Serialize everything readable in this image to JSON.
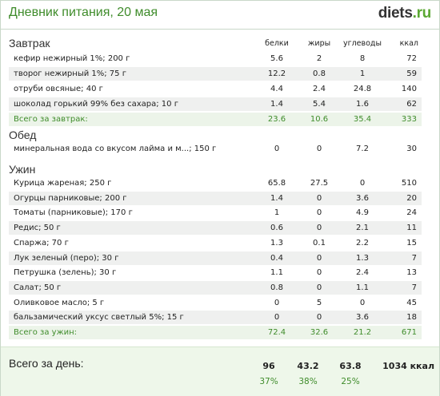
{
  "header": {
    "title": "Дневник питания, 20 мая",
    "logo_main": "diets",
    "logo_suffix": ".ru"
  },
  "columns": {
    "proteins": "белки",
    "fats": "жиры",
    "carbs": "углеводы",
    "kcal": "ккал"
  },
  "breakfast": {
    "title": "Завтрак",
    "items": [
      {
        "name": "кефир нежирный 1%; 200 г",
        "p": "5.6",
        "f": "2",
        "c": "8",
        "kcal": "72"
      },
      {
        "name": "творог нежирный 1%; 75 г",
        "p": "12.2",
        "f": "0.8",
        "c": "1",
        "kcal": "59"
      },
      {
        "name": "отруби овсяные; 40 г",
        "p": "4.4",
        "f": "2.4",
        "c": "24.8",
        "kcal": "140"
      },
      {
        "name": "шоколад горький 99% без сахара; 10 г",
        "p": "1.4",
        "f": "5.4",
        "c": "1.6",
        "kcal": "62"
      }
    ],
    "total": {
      "label": "Всего за завтрак:",
      "p": "23.6",
      "f": "10.6",
      "c": "35.4",
      "kcal": "333"
    }
  },
  "lunch": {
    "title": "Обед",
    "items": [
      {
        "name": "минеральная вода со вкусом лайма и м...; 150 г",
        "p": "0",
        "f": "0",
        "c": "7.2",
        "kcal": "30"
      }
    ]
  },
  "dinner": {
    "title": "Ужин",
    "items": [
      {
        "name": "Курица жареная; 250 г",
        "p": "65.8",
        "f": "27.5",
        "c": "0",
        "kcal": "510"
      },
      {
        "name": "Огурцы парниковые; 200 г",
        "p": "1.4",
        "f": "0",
        "c": "3.6",
        "kcal": "20"
      },
      {
        "name": "Томаты (парниковые); 170 г",
        "p": "1",
        "f": "0",
        "c": "4.9",
        "kcal": "24"
      },
      {
        "name": "Редис; 50 г",
        "p": "0.6",
        "f": "0",
        "c": "2.1",
        "kcal": "11"
      },
      {
        "name": "Спаржа; 70 г",
        "p": "1.3",
        "f": "0.1",
        "c": "2.2",
        "kcal": "15"
      },
      {
        "name": "Лук зеленый (перо); 30 г",
        "p": "0.4",
        "f": "0",
        "c": "1.3",
        "kcal": "7"
      },
      {
        "name": "Петрушка (зелень); 30 г",
        "p": "1.1",
        "f": "0",
        "c": "2.4",
        "kcal": "13"
      },
      {
        "name": "Салат; 50 г",
        "p": "0.8",
        "f": "0",
        "c": "1.1",
        "kcal": "7"
      },
      {
        "name": "Оливковое масло; 5 г",
        "p": "0",
        "f": "5",
        "c": "0",
        "kcal": "45"
      },
      {
        "name": "бальзамический уксус светлый 5%; 15 г",
        "p": "0",
        "f": "0",
        "c": "3.6",
        "kcal": "18"
      }
    ],
    "total": {
      "label": "Всего за ужин:",
      "p": "72.4",
      "f": "32.6",
      "c": "21.2",
      "kcal": "671"
    }
  },
  "day_total": {
    "label": "Всего за день:",
    "p": "96",
    "f": "43.2",
    "c": "63.8",
    "kcal": "1034 ккал",
    "p_pct": "37%",
    "f_pct": "38%",
    "c_pct": "25%"
  }
}
